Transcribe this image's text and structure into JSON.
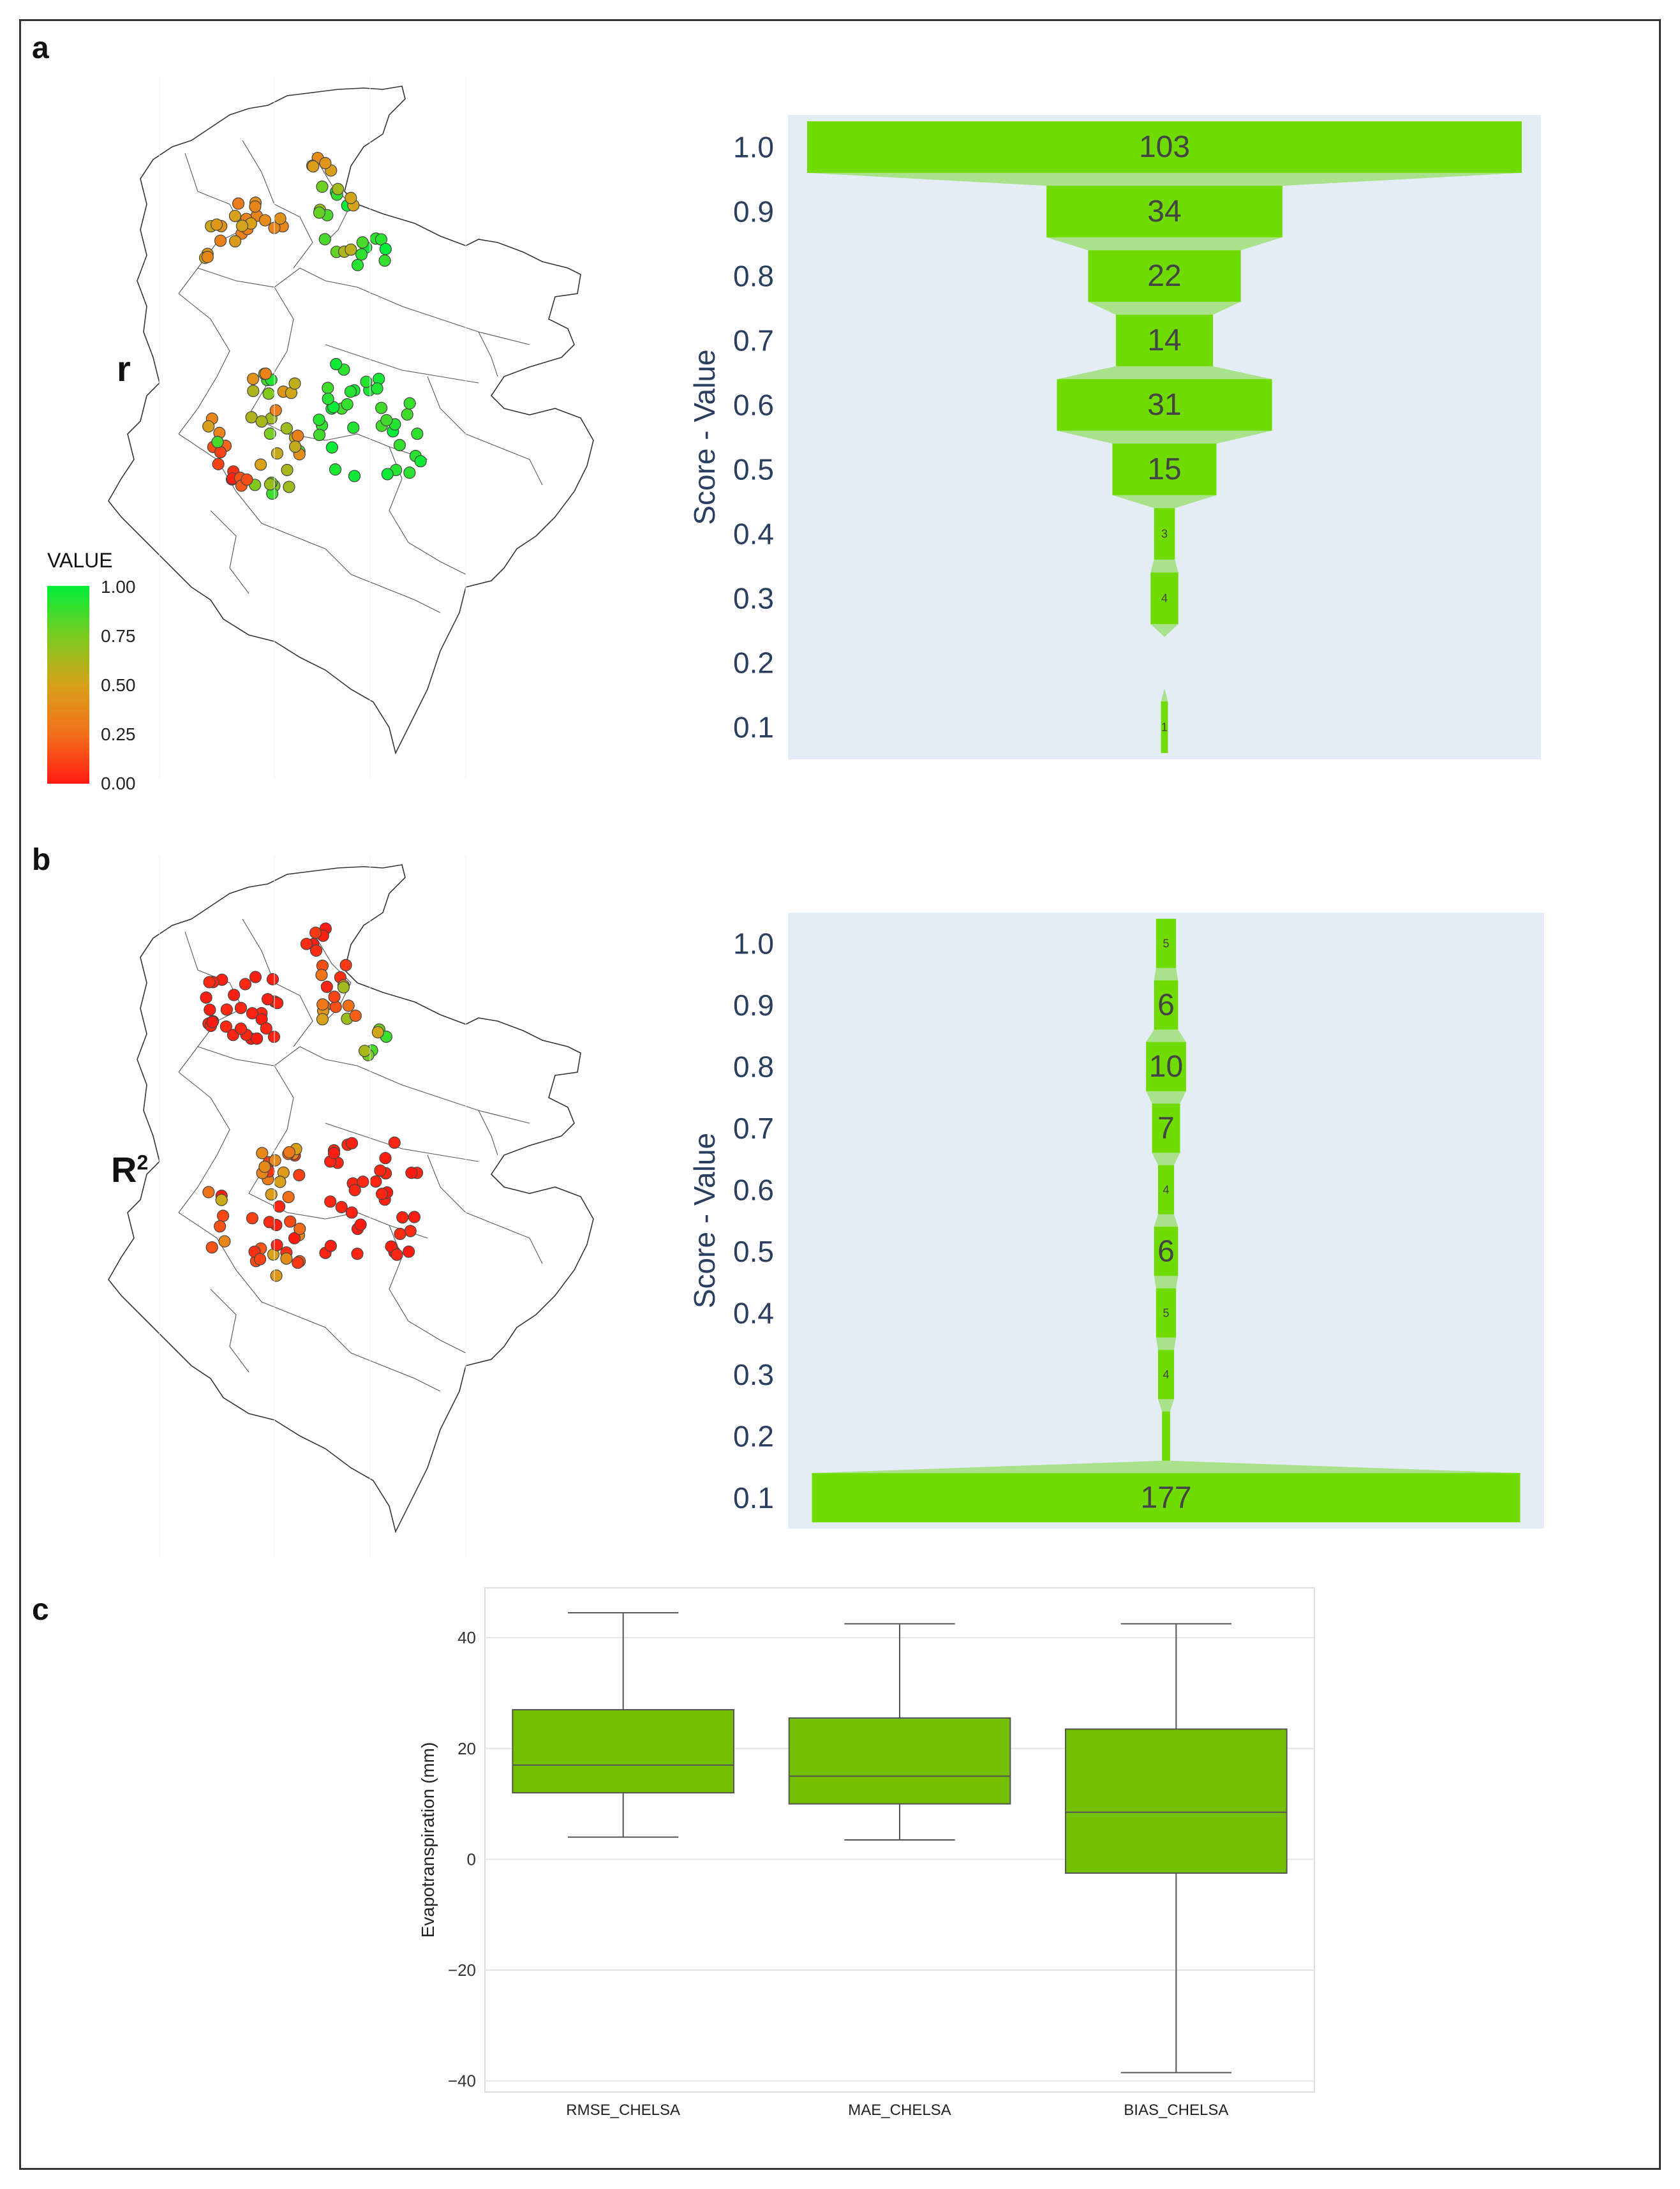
{
  "panels": {
    "a": {
      "label": "a",
      "metric_label": "r"
    },
    "b": {
      "label": "b",
      "metric_label": "R",
      "metric_sup": "2"
    },
    "c": {
      "label": "c"
    }
  },
  "legend": {
    "title": "VALUE",
    "ticks": [
      "1.00",
      "0.75",
      "0.50",
      "0.25",
      "0.00"
    ]
  },
  "colors": {
    "funnel": "#6fdb00",
    "connector": "#a9e28a",
    "panel_bg": "#e4ecf6",
    "axis_text": "#2a3f5f",
    "box": "#73bf00"
  },
  "chart_data": [
    {
      "type": "funnel",
      "id": "funnel-a",
      "ylabel": "Score - Value",
      "categories": [
        "1.0",
        "0.9",
        "0.8",
        "0.7",
        "0.6",
        "0.5",
        "0.4",
        "0.3",
        "0.2",
        "0.1"
      ],
      "values": [
        103,
        34,
        22,
        14,
        31,
        15,
        3,
        4,
        0,
        1
      ],
      "value_labels": [
        "103",
        "34",
        "22",
        "14",
        "31",
        "15",
        "3",
        "4",
        "",
        "1"
      ]
    },
    {
      "type": "funnel",
      "id": "funnel-b",
      "ylabel": "Score - Value",
      "categories": [
        "1.0",
        "0.9",
        "0.8",
        "0.7",
        "0.6",
        "0.5",
        "0.4",
        "0.3",
        "0.2",
        "0.1"
      ],
      "values": [
        5,
        6,
        10,
        7,
        4,
        6,
        5,
        4,
        2,
        177
      ],
      "value_labels": [
        "5",
        "6",
        "10",
        "7",
        "4",
        "6",
        "5",
        "4",
        "",
        "177"
      ]
    },
    {
      "type": "box",
      "id": "box-c",
      "ylabel": "Evapotranspiration (mm)",
      "categories": [
        "RMSE_CHELSA",
        "MAE_CHELSA",
        "BIAS_CHELSA"
      ],
      "ylim": [
        -42,
        49
      ],
      "yticks": [
        40,
        20,
        0,
        -20,
        -40
      ],
      "ytick_labels": [
        "40",
        "20",
        "0",
        "−20",
        "−40"
      ],
      "series": [
        {
          "name": "RMSE_CHELSA",
          "min": 4,
          "q1": 12,
          "median": 17,
          "q3": 27,
          "max": 44.5
        },
        {
          "name": "MAE_CHELSA",
          "min": 3.5,
          "q1": 10,
          "median": 15,
          "q3": 25.5,
          "max": 42.5
        },
        {
          "name": "BIAS_CHELSA",
          "min": -38.5,
          "q1": -2.5,
          "median": 8.5,
          "q3": 23.5,
          "max": 42.5
        }
      ]
    }
  ]
}
